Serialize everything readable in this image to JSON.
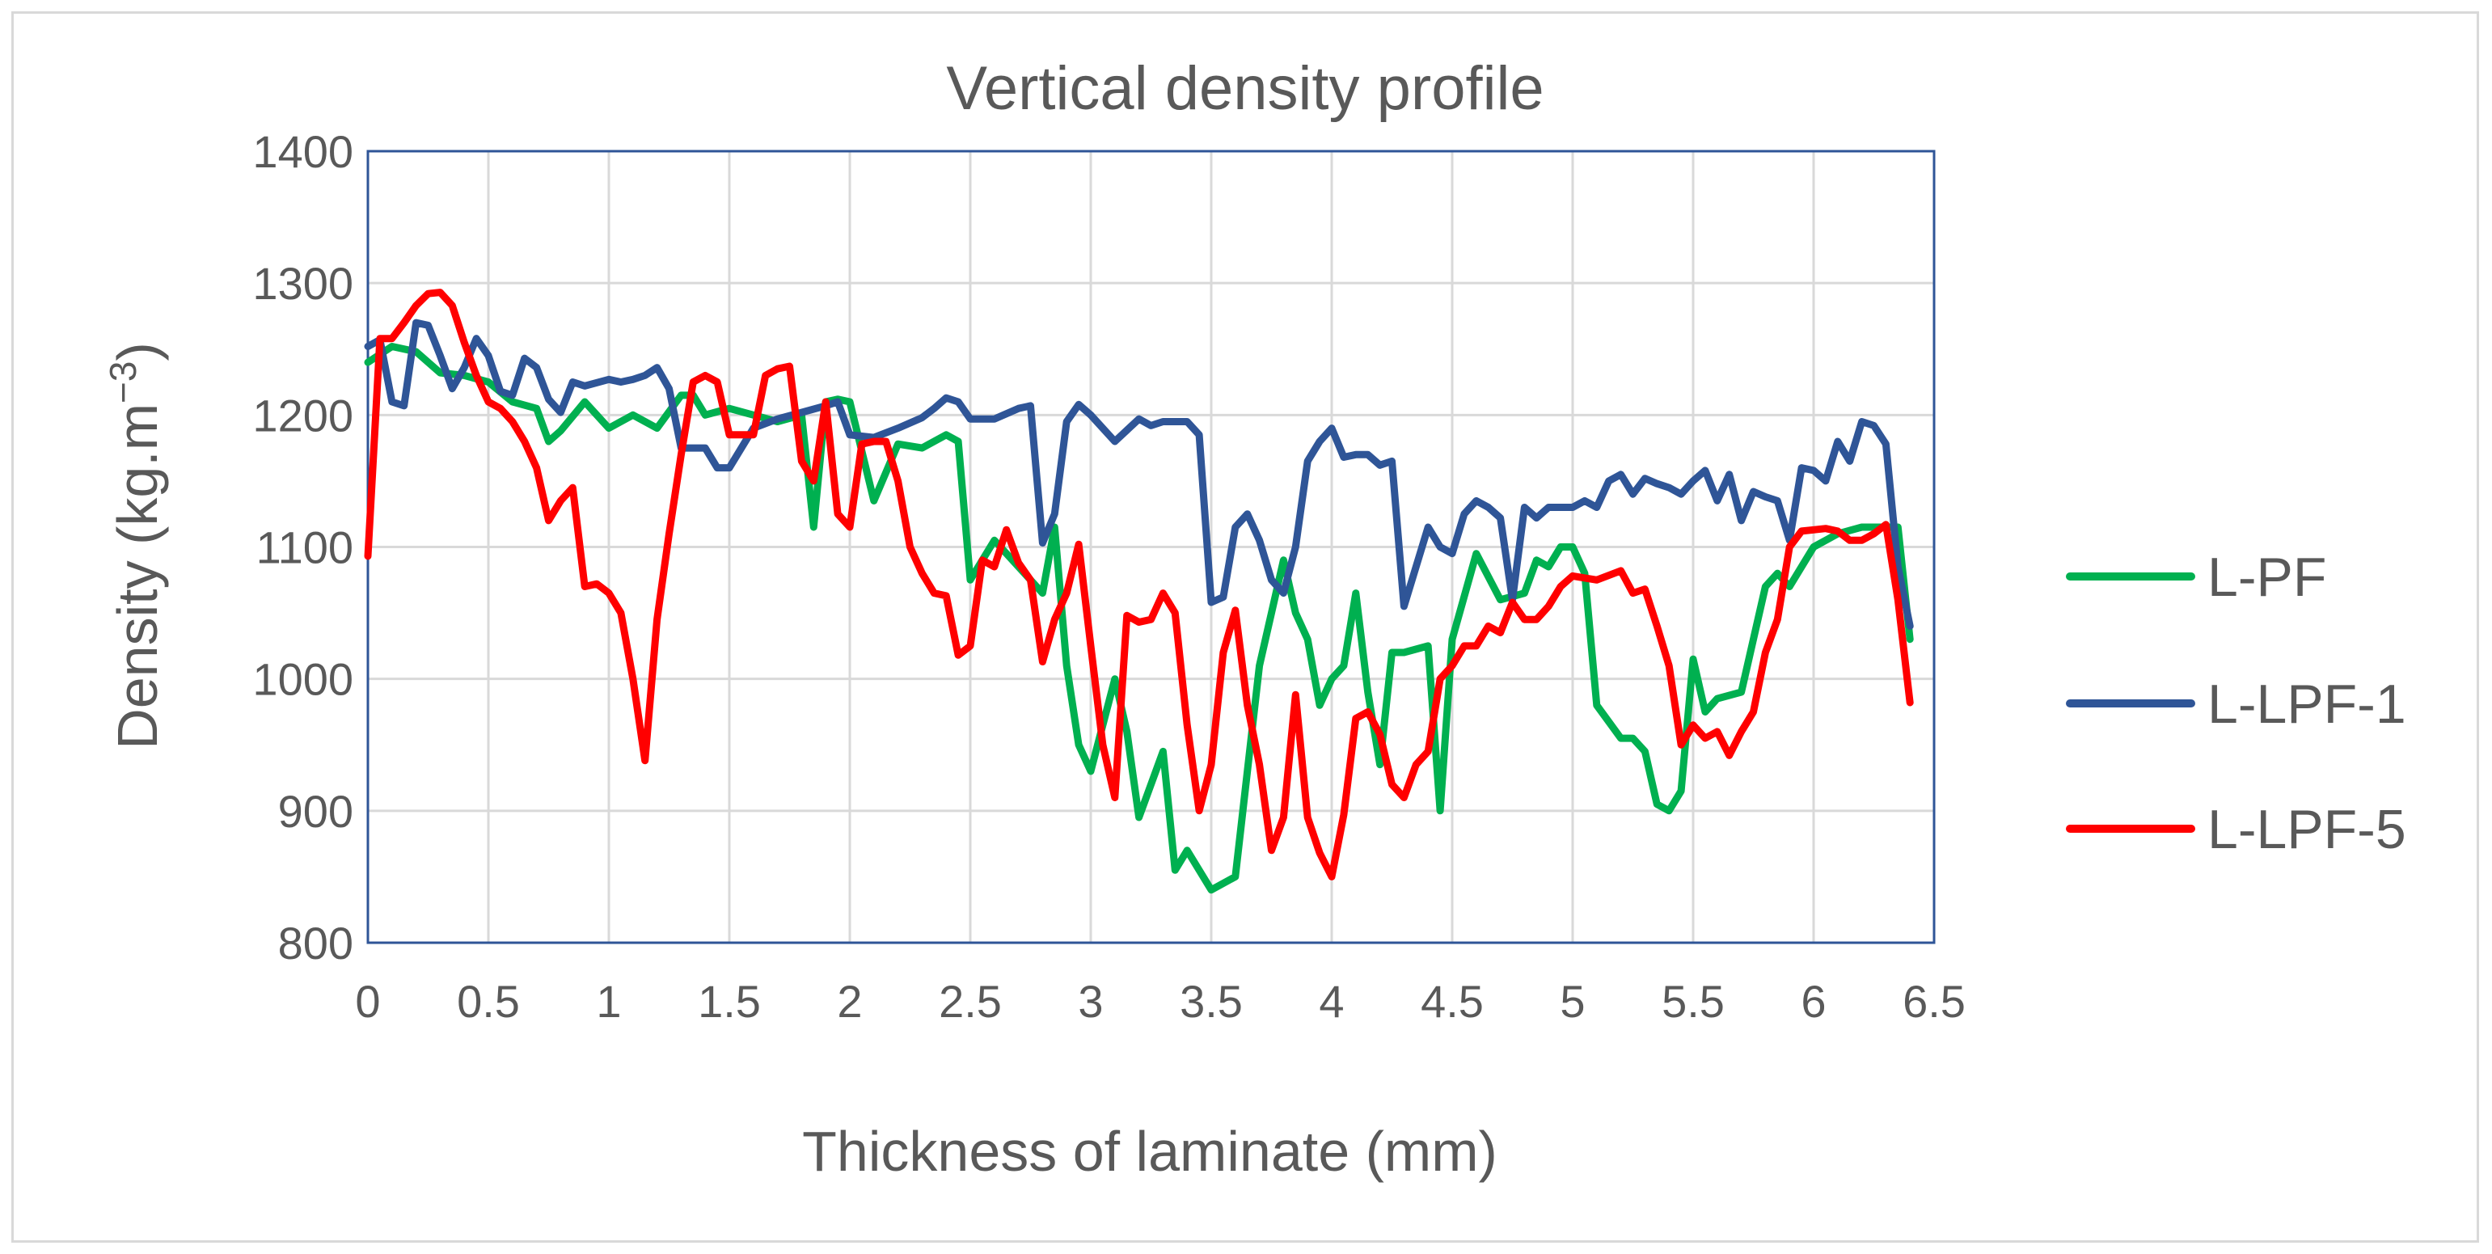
{
  "chart_data": {
    "type": "line",
    "title": "Vertical density profile",
    "xlabel": "Thickness of laminate (mm)",
    "ylabel": "Density  (kg.m",
    "ylabel_sup": "−3",
    "ylabel_close": ")",
    "xlim": [
      0,
      6.5
    ],
    "ylim": [
      800,
      1400
    ],
    "xticks": [
      "0",
      "0.5",
      "1",
      "1.5",
      "2",
      "2.5",
      "3",
      "3.5",
      "4",
      "4.5",
      "5",
      "5.5",
      "6",
      "6.5"
    ],
    "yticks": [
      "800",
      "900",
      "1000",
      "1100",
      "1200",
      "1300",
      "1400"
    ],
    "grid": true,
    "legend_position": "right",
    "series": [
      {
        "name": "L-PF",
        "color": "#00b050",
        "x": [
          0,
          0.1,
          0.2,
          0.3,
          0.4,
          0.5,
          0.6,
          0.7,
          0.75,
          0.8,
          0.9,
          1.0,
          1.1,
          1.2,
          1.3,
          1.35,
          1.4,
          1.5,
          1.6,
          1.7,
          1.8,
          1.85,
          1.9,
          1.95,
          2.0,
          2.1,
          2.2,
          2.3,
          2.4,
          2.45,
          2.5,
          2.6,
          2.7,
          2.8,
          2.85,
          2.9,
          2.95,
          3.0,
          3.1,
          3.15,
          3.2,
          3.3,
          3.35,
          3.4,
          3.5,
          3.6,
          3.7,
          3.75,
          3.8,
          3.85,
          3.9,
          3.95,
          4.0,
          4.05,
          4.1,
          4.15,
          4.2,
          4.25,
          4.3,
          4.4,
          4.45,
          4.5,
          4.6,
          4.7,
          4.8,
          4.85,
          4.9,
          4.95,
          5.0,
          5.05,
          5.1,
          5.2,
          5.25,
          5.3,
          5.35,
          5.4,
          5.45,
          5.5,
          5.55,
          5.6,
          5.7,
          5.8,
          5.85,
          5.9,
          6.0,
          6.1,
          6.2,
          6.3,
          6.35,
          6.4
        ],
        "y": [
          1240,
          1252,
          1248,
          1232,
          1230,
          1225,
          1210,
          1205,
          1180,
          1188,
          1210,
          1190,
          1200,
          1190,
          1215,
          1215,
          1200,
          1205,
          1200,
          1195,
          1200,
          1115,
          1210,
          1212,
          1210,
          1135,
          1178,
          1175,
          1185,
          1180,
          1075,
          1105,
          1085,
          1065,
          1115,
          1010,
          950,
          930,
          1000,
          960,
          895,
          945,
          855,
          870,
          840,
          850,
          1010,
          1050,
          1090,
          1050,
          1030,
          980,
          1000,
          1010,
          1065,
          990,
          935,
          1020,
          1020,
          1025,
          900,
          1030,
          1095,
          1060,
          1065,
          1090,
          1085,
          1100,
          1100,
          1080,
          980,
          955,
          955,
          945,
          905,
          900,
          915,
          1015,
          975,
          985,
          990,
          1070,
          1080,
          1070,
          1100,
          1110,
          1115,
          1115,
          1115,
          1030
        ]
      },
      {
        "name": "L-LPF-1",
        "color": "#2f5597",
        "x": [
          0,
          0.05,
          0.1,
          0.15,
          0.2,
          0.25,
          0.3,
          0.35,
          0.4,
          0.45,
          0.5,
          0.55,
          0.6,
          0.65,
          0.7,
          0.75,
          0.8,
          0.85,
          0.9,
          1.0,
          1.05,
          1.1,
          1.15,
          1.2,
          1.25,
          1.3,
          1.4,
          1.45,
          1.5,
          1.55,
          1.6,
          1.7,
          1.8,
          1.9,
          1.95,
          2.0,
          2.1,
          2.2,
          2.3,
          2.35,
          2.4,
          2.45,
          2.5,
          2.6,
          2.7,
          2.75,
          2.8,
          2.85,
          2.9,
          2.95,
          3.0,
          3.1,
          3.2,
          3.25,
          3.3,
          3.4,
          3.45,
          3.5,
          3.55,
          3.6,
          3.65,
          3.7,
          3.75,
          3.8,
          3.85,
          3.9,
          3.95,
          4.0,
          4.05,
          4.1,
          4.15,
          4.2,
          4.25,
          4.3,
          4.4,
          4.45,
          4.5,
          4.55,
          4.6,
          4.65,
          4.7,
          4.75,
          4.8,
          4.85,
          4.9,
          4.95,
          5.0,
          5.05,
          5.1,
          5.15,
          5.2,
          5.25,
          5.3,
          5.35,
          5.4,
          5.45,
          5.5,
          5.55,
          5.6,
          5.65,
          5.7,
          5.75,
          5.8,
          5.85,
          5.9,
          5.95,
          6.0,
          6.05,
          6.1,
          6.15,
          6.2,
          6.25,
          6.3,
          6.35,
          6.4
        ],
        "y": [
          1252,
          1257,
          1210,
          1207,
          1270,
          1268,
          1245,
          1220,
          1236,
          1258,
          1245,
          1218,
          1215,
          1243,
          1236,
          1212,
          1202,
          1225,
          1222,
          1227,
          1225,
          1227,
          1230,
          1236,
          1220,
          1175,
          1175,
          1160,
          1160,
          1175,
          1190,
          1197,
          1202,
          1207,
          1210,
          1185,
          1183,
          1190,
          1198,
          1205,
          1213,
          1210,
          1197,
          1197,
          1205,
          1207,
          1103,
          1125,
          1195,
          1208,
          1200,
          1180,
          1197,
          1192,
          1195,
          1195,
          1185,
          1058,
          1062,
          1115,
          1125,
          1105,
          1075,
          1065,
          1100,
          1165,
          1180,
          1190,
          1168,
          1170,
          1170,
          1162,
          1165,
          1055,
          1115,
          1100,
          1095,
          1125,
          1135,
          1130,
          1122,
          1060,
          1130,
          1122,
          1130,
          1130,
          1130,
          1135,
          1130,
          1150,
          1155,
          1140,
          1152,
          1148,
          1145,
          1140,
          1150,
          1158,
          1135,
          1155,
          1120,
          1142,
          1138,
          1135,
          1105,
          1160,
          1158,
          1150,
          1180,
          1165,
          1195,
          1192,
          1178,
          1085,
          1040
        ]
      },
      {
        "name": "L-LPF-5",
        "color": "#ff0000",
        "x": [
          0,
          0.05,
          0.1,
          0.15,
          0.2,
          0.25,
          0.3,
          0.35,
          0.4,
          0.45,
          0.5,
          0.55,
          0.6,
          0.65,
          0.7,
          0.75,
          0.8,
          0.85,
          0.9,
          0.95,
          1.0,
          1.05,
          1.1,
          1.15,
          1.2,
          1.25,
          1.3,
          1.35,
          1.4,
          1.45,
          1.5,
          1.55,
          1.6,
          1.65,
          1.7,
          1.75,
          1.8,
          1.85,
          1.9,
          1.95,
          2.0,
          2.05,
          2.1,
          2.15,
          2.2,
          2.25,
          2.3,
          2.35,
          2.4,
          2.45,
          2.5,
          2.55,
          2.6,
          2.65,
          2.7,
          2.75,
          2.8,
          2.85,
          2.9,
          2.95,
          3.0,
          3.05,
          3.1,
          3.15,
          3.2,
          3.25,
          3.3,
          3.35,
          3.4,
          3.45,
          3.5,
          3.55,
          3.6,
          3.65,
          3.7,
          3.75,
          3.8,
          3.85,
          3.9,
          3.95,
          4.0,
          4.05,
          4.1,
          4.15,
          4.2,
          4.25,
          4.3,
          4.35,
          4.4,
          4.45,
          4.5,
          4.55,
          4.6,
          4.65,
          4.7,
          4.75,
          4.8,
          4.85,
          4.9,
          4.95,
          5.0,
          5.1,
          5.2,
          5.25,
          5.3,
          5.35,
          5.4,
          5.45,
          5.5,
          5.55,
          5.6,
          5.65,
          5.7,
          5.75,
          5.8,
          5.85,
          5.9,
          5.95,
          6.0,
          6.05,
          6.1,
          6.15,
          6.2,
          6.25,
          6.3,
          6.35,
          6.4
        ],
        "y": [
          1093,
          1258,
          1258,
          1270,
          1283,
          1292,
          1293,
          1283,
          1255,
          1230,
          1210,
          1205,
          1195,
          1180,
          1160,
          1120,
          1135,
          1145,
          1070,
          1072,
          1065,
          1050,
          1000,
          938,
          1045,
          1110,
          1170,
          1225,
          1230,
          1225,
          1185,
          1185,
          1185,
          1230,
          1235,
          1237,
          1165,
          1150,
          1210,
          1125,
          1115,
          1178,
          1180,
          1180,
          1150,
          1100,
          1080,
          1065,
          1063,
          1018,
          1025,
          1090,
          1085,
          1113,
          1088,
          1075,
          1013,
          1045,
          1065,
          1102,
          1025,
          950,
          910,
          1048,
          1043,
          1045,
          1065,
          1050,
          965,
          900,
          935,
          1020,
          1052,
          980,
          935,
          870,
          895,
          988,
          895,
          868,
          850,
          897,
          970,
          975,
          958,
          920,
          910,
          935,
          945,
          1000,
          1010,
          1025,
          1025,
          1040,
          1035,
          1058,
          1045,
          1045,
          1055,
          1070,
          1078,
          1075,
          1082,
          1065,
          1068,
          1040,
          1010,
          950,
          965,
          955,
          960,
          942,
          960,
          975,
          1020,
          1045,
          1100,
          1112,
          1113,
          1114,
          1112,
          1105,
          1105,
          1110,
          1117,
          1060,
          982
        ]
      }
    ]
  }
}
